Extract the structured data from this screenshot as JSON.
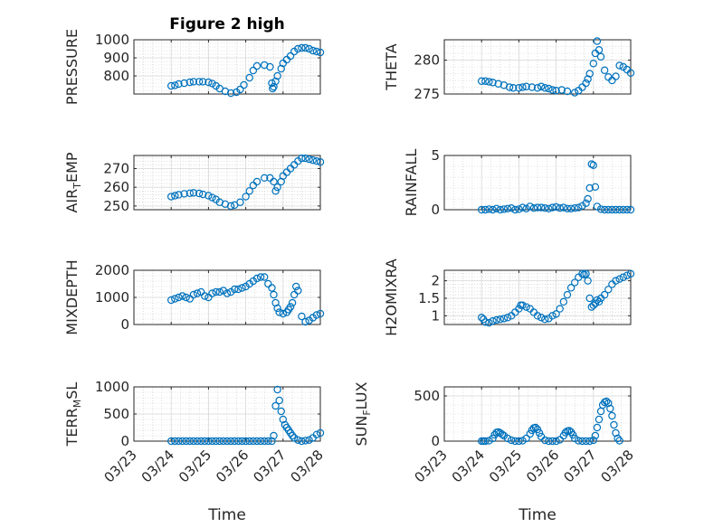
{
  "figure": {
    "title": "Figure 2 high"
  },
  "chart_data": [
    {
      "type": "scatter",
      "title": "Figure 2 high",
      "ylabel": "PRESSURE",
      "xlabel": "",
      "ylim": [
        700,
        1000
      ],
      "yticks": [
        800,
        900,
        1000
      ],
      "yticklabels": [
        "800",
        "900",
        "1000"
      ],
      "xlim": [
        0,
        5
      ],
      "xticks": [
        0,
        1,
        2,
        3,
        4,
        5
      ],
      "xticklabels": [],
      "grid": true,
      "x": [
        1.0,
        1.1,
        1.2,
        1.35,
        1.5,
        1.6,
        1.75,
        1.85,
        2.0,
        2.1,
        2.2,
        2.3,
        2.45,
        2.6,
        2.75,
        2.85,
        2.95,
        3.1,
        3.2,
        3.3,
        3.5,
        3.65,
        3.7,
        3.72,
        3.75,
        3.8,
        3.85,
        3.95,
        4.0,
        4.1,
        4.2,
        4.3,
        4.4,
        4.5,
        4.6,
        4.7,
        4.8,
        4.9,
        5.0
      ],
      "values": [
        745,
        748,
        755,
        760,
        765,
        768,
        768,
        768,
        765,
        758,
        745,
        730,
        715,
        705,
        710,
        725,
        750,
        790,
        830,
        855,
        860,
        850,
        760,
        730,
        740,
        770,
        800,
        840,
        870,
        890,
        910,
        935,
        950,
        955,
        955,
        950,
        940,
        935,
        930
      ]
    },
    {
      "type": "scatter",
      "title": "",
      "ylabel": "THETA",
      "xlabel": "",
      "ylim": [
        275,
        283
      ],
      "yticks": [
        275,
        280
      ],
      "yticklabels": [
        "275",
        "280"
      ],
      "xlim": [
        0,
        5
      ],
      "xticks": [
        0,
        1,
        2,
        3,
        4,
        5
      ],
      "xticklabels": [],
      "grid": true,
      "x": [
        1.0,
        1.1,
        1.2,
        1.3,
        1.45,
        1.6,
        1.75,
        1.85,
        2.0,
        2.1,
        2.2,
        2.35,
        2.5,
        2.6,
        2.7,
        2.8,
        2.9,
        3.0,
        3.15,
        3.3,
        3.5,
        3.6,
        3.7,
        3.8,
        3.85,
        3.9,
        4.0,
        4.05,
        4.1,
        4.15,
        4.2,
        4.3,
        4.4,
        4.5,
        4.6,
        4.7,
        4.8,
        4.9,
        5.0
      ],
      "values": [
        276.9,
        276.9,
        276.8,
        276.7,
        276.5,
        276.3,
        276.0,
        275.9,
        275.9,
        276.0,
        276.1,
        276.0,
        275.9,
        276.1,
        275.9,
        275.8,
        275.6,
        275.5,
        275.6,
        275.4,
        275.2,
        275.5,
        276.0,
        276.6,
        277.2,
        278.0,
        279.5,
        281.0,
        282.8,
        281.5,
        280.5,
        278.5,
        277.5,
        277.0,
        277.6,
        279.2,
        279.0,
        278.6,
        278.1
      ]
    },
    {
      "type": "scatter",
      "title": "",
      "ylabel": "AIR_TEMP",
      "xlabel": "",
      "ylim": [
        248,
        277
      ],
      "yticks": [
        250,
        260,
        270
      ],
      "yticklabels": [
        "250",
        "260",
        "270"
      ],
      "xlim": [
        0,
        5
      ],
      "xticks": [
        0,
        1,
        2,
        3,
        4,
        5
      ],
      "xticklabels": [],
      "grid": true,
      "x": [
        1.0,
        1.1,
        1.2,
        1.35,
        1.5,
        1.6,
        1.75,
        1.85,
        2.0,
        2.1,
        2.2,
        2.3,
        2.45,
        2.6,
        2.7,
        2.85,
        3.0,
        3.1,
        3.2,
        3.3,
        3.5,
        3.65,
        3.75,
        3.8,
        3.85,
        3.95,
        4.0,
        4.1,
        4.2,
        4.3,
        4.4,
        4.5,
        4.6,
        4.7,
        4.8,
        4.9,
        5.0
      ],
      "values": [
        255,
        255.5,
        256,
        256.5,
        256.8,
        257,
        256.7,
        256.2,
        255.5,
        254.5,
        253.5,
        252,
        251,
        250,
        250.5,
        252,
        255,
        258,
        261,
        263,
        265,
        265,
        263,
        258,
        260,
        263,
        266,
        268,
        270,
        272,
        274,
        275.5,
        275.5,
        275,
        274.5,
        274,
        273.5
      ]
    },
    {
      "type": "scatter",
      "title": "",
      "ylabel": "RAINFALL",
      "xlabel": "",
      "ylim": [
        0,
        5
      ],
      "yticks": [
        0,
        5
      ],
      "yticklabels": [
        "0",
        "5"
      ],
      "xlim": [
        0,
        5
      ],
      "xticks": [
        0,
        1,
        2,
        3,
        4,
        5
      ],
      "xticklabels": [],
      "grid": true,
      "x": [
        1.0,
        1.1,
        1.2,
        1.3,
        1.4,
        1.5,
        1.6,
        1.7,
        1.8,
        1.9,
        2.0,
        2.1,
        2.2,
        2.3,
        2.4,
        2.5,
        2.6,
        2.7,
        2.8,
        2.9,
        3.0,
        3.1,
        3.2,
        3.3,
        3.4,
        3.5,
        3.6,
        3.7,
        3.8,
        3.85,
        3.9,
        3.95,
        4.0,
        4.05,
        4.1,
        4.2,
        4.3,
        4.4,
        4.5,
        4.6,
        4.7,
        4.8,
        4.9,
        5.0
      ],
      "values": [
        0,
        0,
        0.05,
        0,
        0.1,
        0,
        0.05,
        0.1,
        0.15,
        0,
        0.05,
        0.2,
        0.1,
        0.3,
        0.15,
        0.2,
        0.2,
        0.15,
        0.1,
        0.2,
        0.25,
        0.15,
        0.2,
        0.1,
        0.1,
        0.15,
        0.2,
        0.35,
        0.6,
        1.0,
        2.0,
        4.2,
        4.1,
        2.1,
        0.3,
        0.05,
        0,
        0,
        0,
        0,
        0,
        0,
        0,
        0
      ]
    },
    {
      "type": "scatter",
      "title": "",
      "ylabel": "MIXDEPTH",
      "xlabel": "",
      "ylim": [
        0,
        2000
      ],
      "yticks": [
        0,
        1000,
        2000
      ],
      "yticklabels": [
        "0",
        "1000",
        "2000"
      ],
      "xlim": [
        0,
        5
      ],
      "xticks": [
        0,
        1,
        2,
        3,
        4,
        5
      ],
      "xticklabels": [],
      "grid": true,
      "x": [
        1.0,
        1.1,
        1.2,
        1.3,
        1.4,
        1.5,
        1.6,
        1.7,
        1.8,
        1.9,
        2.0,
        2.1,
        2.2,
        2.3,
        2.4,
        2.5,
        2.6,
        2.7,
        2.8,
        2.9,
        3.0,
        3.1,
        3.2,
        3.3,
        3.4,
        3.5,
        3.6,
        3.7,
        3.75,
        3.8,
        3.85,
        3.9,
        4.0,
        4.1,
        4.15,
        4.2,
        4.25,
        4.3,
        4.35,
        4.4,
        4.5,
        4.6,
        4.7,
        4.8,
        4.9,
        5.0
      ],
      "values": [
        900,
        950,
        1000,
        1050,
        1000,
        950,
        1100,
        1150,
        1200,
        1050,
        1000,
        1150,
        1200,
        1200,
        1250,
        1150,
        1200,
        1300,
        1300,
        1350,
        1400,
        1500,
        1600,
        1700,
        1750,
        1750,
        1500,
        1350,
        1100,
        800,
        600,
        450,
        400,
        450,
        550,
        650,
        800,
        1100,
        1400,
        1250,
        300,
        100,
        150,
        250,
        350,
        400
      ]
    },
    {
      "type": "scatter",
      "title": "",
      "ylabel": "H2OMIXRA",
      "xlabel": "",
      "ylim": [
        0.75,
        2.3
      ],
      "yticks": [
        1,
        1.5,
        2
      ],
      "yticklabels": [
        "1",
        "1.5",
        "2"
      ],
      "xlim": [
        0,
        5
      ],
      "xticks": [
        0,
        1,
        2,
        3,
        4,
        5
      ],
      "xticklabels": [],
      "grid": true,
      "x": [
        1.0,
        1.05,
        1.1,
        1.2,
        1.3,
        1.4,
        1.5,
        1.6,
        1.7,
        1.8,
        1.9,
        2.0,
        2.05,
        2.1,
        2.2,
        2.3,
        2.4,
        2.5,
        2.6,
        2.7,
        2.8,
        2.9,
        3.0,
        3.1,
        3.2,
        3.3,
        3.4,
        3.5,
        3.6,
        3.7,
        3.75,
        3.8,
        3.85,
        3.9,
        3.95,
        4.0,
        4.05,
        4.1,
        4.15,
        4.2,
        4.3,
        4.4,
        4.5,
        4.6,
        4.7,
        4.8,
        4.9,
        5.0
      ],
      "values": [
        0.95,
        0.9,
        0.82,
        0.8,
        0.85,
        0.88,
        0.9,
        0.92,
        0.95,
        1.0,
        1.1,
        1.2,
        1.3,
        1.3,
        1.25,
        1.2,
        1.1,
        1.0,
        0.95,
        0.9,
        0.92,
        1.0,
        1.05,
        1.2,
        1.4,
        1.6,
        1.8,
        1.95,
        2.1,
        2.2,
        2.18,
        2.2,
        2.0,
        1.5,
        1.25,
        1.3,
        1.35,
        1.45,
        1.4,
        1.5,
        1.6,
        1.75,
        1.9,
        2.0,
        2.05,
        2.1,
        2.15,
        2.2
      ]
    },
    {
      "type": "scatter",
      "title": "",
      "ylabel": "TERR_MSL",
      "xlabel": "Time",
      "ylim": [
        0,
        1000
      ],
      "yticks": [
        0,
        500,
        1000
      ],
      "yticklabels": [
        "0",
        "500",
        "1000"
      ],
      "xlim": [
        0,
        5
      ],
      "xticks": [
        0,
        1,
        2,
        3,
        4,
        5
      ],
      "xticklabels": [
        "03/23",
        "03/24",
        "03/25",
        "03/26",
        "03/27",
        "03/28"
      ],
      "grid": true,
      "x": [
        1.0,
        1.1,
        1.2,
        1.3,
        1.4,
        1.5,
        1.6,
        1.7,
        1.8,
        1.9,
        2.0,
        2.1,
        2.2,
        2.3,
        2.4,
        2.5,
        2.6,
        2.7,
        2.8,
        2.9,
        3.0,
        3.1,
        3.2,
        3.3,
        3.4,
        3.5,
        3.6,
        3.7,
        3.75,
        3.8,
        3.85,
        3.9,
        3.95,
        4.0,
        4.05,
        4.1,
        4.15,
        4.2,
        4.25,
        4.3,
        4.4,
        4.5,
        4.6,
        4.7,
        4.8,
        4.9,
        5.0
      ],
      "values": [
        0,
        0,
        0,
        0,
        0,
        0,
        0,
        0,
        0,
        0,
        0,
        0,
        0,
        0,
        0,
        0,
        0,
        0,
        0,
        0,
        0,
        0,
        0,
        0,
        0,
        0,
        0,
        0,
        100,
        650,
        950,
        750,
        550,
        400,
        300,
        250,
        200,
        150,
        100,
        60,
        20,
        0,
        10,
        20,
        60,
        120,
        150
      ]
    },
    {
      "type": "scatter",
      "title": "",
      "ylabel": "SUN_FLUX",
      "xlabel": "Time",
      "ylim": [
        0,
        600
      ],
      "yticks": [
        0,
        500
      ],
      "yticklabels": [
        "0",
        "500"
      ],
      "xlim": [
        0,
        5
      ],
      "xticks": [
        0,
        1,
        2,
        3,
        4,
        5
      ],
      "xticklabels": [
        "03/23",
        "03/24",
        "03/25",
        "03/26",
        "03/27",
        "03/28"
      ],
      "grid": true,
      "x": [
        1.0,
        1.05,
        1.1,
        1.2,
        1.3,
        1.35,
        1.4,
        1.45,
        1.5,
        1.55,
        1.6,
        1.7,
        1.8,
        1.9,
        2.0,
        2.1,
        2.2,
        2.3,
        2.35,
        2.4,
        2.45,
        2.5,
        2.55,
        2.6,
        2.7,
        2.8,
        2.9,
        3.0,
        3.1,
        3.2,
        3.25,
        3.3,
        3.35,
        3.4,
        3.45,
        3.5,
        3.6,
        3.7,
        3.8,
        3.9,
        4.0,
        4.05,
        4.1,
        4.15,
        4.2,
        4.25,
        4.3,
        4.35,
        4.4,
        4.45,
        4.5,
        4.55,
        4.6,
        4.65,
        4.7
      ],
      "values": [
        0,
        0,
        0,
        5,
        30,
        70,
        95,
        100,
        90,
        75,
        60,
        30,
        10,
        0,
        0,
        5,
        30,
        80,
        120,
        145,
        150,
        130,
        90,
        50,
        10,
        0,
        0,
        0,
        15,
        60,
        95,
        110,
        115,
        100,
        70,
        30,
        5,
        0,
        0,
        0,
        10,
        60,
        150,
        240,
        330,
        400,
        430,
        440,
        420,
        360,
        280,
        180,
        90,
        30,
        5
      ]
    }
  ]
}
